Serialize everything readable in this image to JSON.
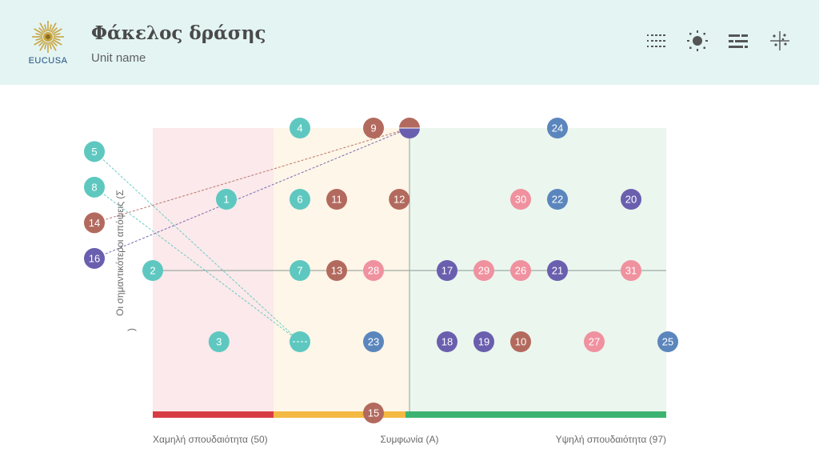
{
  "header": {
    "title": "Φάκελος δράσης",
    "unit": "Unit name",
    "logo_text": "EUCUSA"
  },
  "toolbar": [
    {
      "name": "numbered-list-icon"
    },
    {
      "name": "sun-icon"
    },
    {
      "name": "sliders-icon"
    },
    {
      "name": "scatter-crosshair-icon"
    }
  ],
  "colors": {
    "teal": "#5ec8c0",
    "brown": "#b36a5e",
    "blue": "#5b86bd",
    "purple": "#6a5fae",
    "pink": "#f0919f",
    "band_low": "#d93b45",
    "band_mid": "#f4b942",
    "band_high": "#3cb371",
    "zone_low": "#fbe9eb",
    "zone_mid": "#fef6e8",
    "zone_high": "#ebf6ee"
  },
  "chart_data": {
    "type": "scatter",
    "xlabels": {
      "low": "Χαμηλή σπουδαιότητα (50)",
      "mid": "Συμφωνία (A)",
      "high": "Υψηλή σπουδαιότητα (97)"
    },
    "ylabel_line1": "Οι σημαντικότεροι απόψεις (Σ",
    "ylabel_line2": ")",
    "columns": 15,
    "rows": 5,
    "points": [
      {
        "id": "4",
        "col": 4,
        "row": 0,
        "color": "teal"
      },
      {
        "id": "9",
        "col": 6,
        "row": 0,
        "color": "brown"
      },
      {
        "id": "24",
        "col": 11,
        "row": 0,
        "color": "blue"
      },
      {
        "id": "1",
        "col": 2,
        "row": 1,
        "color": "teal"
      },
      {
        "id": "6",
        "col": 4,
        "row": 1,
        "color": "teal"
      },
      {
        "id": "11",
        "col": 5,
        "row": 1,
        "color": "brown"
      },
      {
        "id": "12",
        "col": 6.7,
        "row": 1,
        "color": "brown"
      },
      {
        "id": "30",
        "col": 10,
        "row": 1,
        "color": "pink"
      },
      {
        "id": "22",
        "col": 11,
        "row": 1,
        "color": "blue"
      },
      {
        "id": "20",
        "col": 13,
        "row": 1,
        "color": "purple"
      },
      {
        "id": "2",
        "col": 0,
        "row": 2,
        "color": "teal"
      },
      {
        "id": "7",
        "col": 4,
        "row": 2,
        "color": "teal"
      },
      {
        "id": "13",
        "col": 5,
        "row": 2,
        "color": "brown"
      },
      {
        "id": "28",
        "col": 6,
        "row": 2,
        "color": "pink"
      },
      {
        "id": "17",
        "col": 8,
        "row": 2,
        "color": "purple"
      },
      {
        "id": "29",
        "col": 9,
        "row": 2,
        "color": "pink"
      },
      {
        "id": "26",
        "col": 10,
        "row": 2,
        "color": "pink"
      },
      {
        "id": "21",
        "col": 11,
        "row": 2,
        "color": "purple"
      },
      {
        "id": "31",
        "col": 13,
        "row": 2,
        "color": "pink"
      },
      {
        "id": "3",
        "col": 1.8,
        "row": 3,
        "color": "teal"
      },
      {
        "id": "23",
        "col": 6,
        "row": 3,
        "color": "blue"
      },
      {
        "id": "18",
        "col": 8,
        "row": 3,
        "color": "purple"
      },
      {
        "id": "19",
        "col": 9,
        "row": 3,
        "color": "purple"
      },
      {
        "id": "10",
        "col": 10,
        "row": 3,
        "color": "brown"
      },
      {
        "id": "27",
        "col": 12,
        "row": 3,
        "color": "pink"
      },
      {
        "id": "25",
        "col": 14,
        "row": 3,
        "color": "blue"
      },
      {
        "id": "15",
        "col": 6,
        "row": 4,
        "color": "brown"
      }
    ],
    "side_points": [
      {
        "id": "5",
        "row": 0.33,
        "color": "teal",
        "target": "mid-bottom"
      },
      {
        "id": "8",
        "row": 0.83,
        "color": "teal",
        "target": "mid-bottom"
      },
      {
        "id": "14",
        "row": 1.33,
        "color": "brown",
        "target": "split-top"
      },
      {
        "id": "16",
        "row": 1.83,
        "color": "purple",
        "target": "split-top"
      }
    ]
  }
}
